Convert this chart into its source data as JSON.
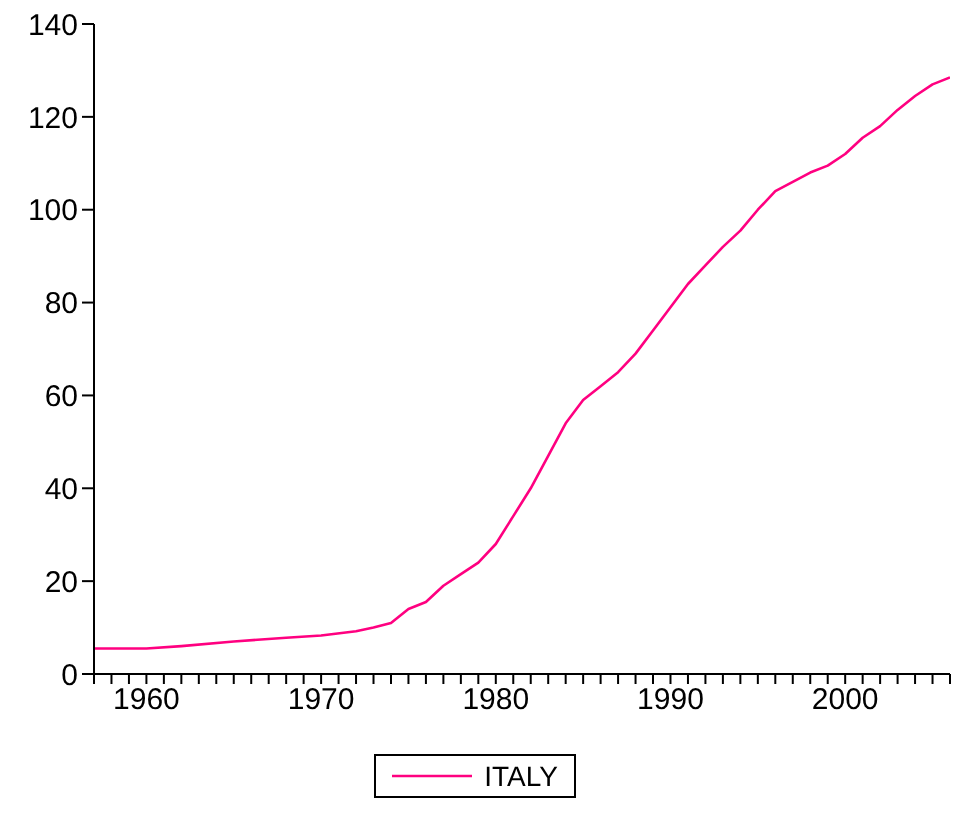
{
  "chart_data": {
    "type": "line",
    "x": [
      1957,
      1960,
      1962,
      1965,
      1968,
      1970,
      1972,
      1973,
      1974,
      1975,
      1976,
      1977,
      1978,
      1979,
      1980,
      1981,
      1982,
      1983,
      1984,
      1985,
      1986,
      1987,
      1988,
      1989,
      1990,
      1991,
      1992,
      1993,
      1994,
      1995,
      1996,
      1997,
      1998,
      1999,
      2000,
      2001,
      2002,
      2003,
      2004,
      2005,
      2006
    ],
    "series": [
      {
        "name": "ITALY",
        "color": "#ff0080",
        "values": [
          5.5,
          5.5,
          6,
          7,
          7.8,
          8.3,
          9.2,
          10,
          11,
          14,
          15.5,
          19,
          21.5,
          24,
          28,
          34,
          40,
          47,
          54,
          59,
          62,
          65,
          69,
          74,
          79,
          84,
          88,
          92,
          95.5,
          100,
          104,
          106,
          108,
          109.5,
          112,
          115.5,
          118,
          121.5,
          124.5,
          127,
          128.5
        ]
      }
    ],
    "xlim": [
      1957,
      2006
    ],
    "xticks": [
      {
        "value": 1957,
        "label": null
      },
      {
        "value": 1958,
        "label": null
      },
      {
        "value": 1959,
        "label": null
      },
      1960,
      {
        "value": 1961,
        "label": null
      },
      {
        "value": 1962,
        "label": null
      },
      {
        "value": 1963,
        "label": null
      },
      {
        "value": 1964,
        "label": null
      },
      {
        "value": 1965,
        "label": null
      },
      {
        "value": 1966,
        "label": null
      },
      {
        "value": 1967,
        "label": null
      },
      {
        "value": 1968,
        "label": null
      },
      {
        "value": 1969,
        "label": null
      },
      1970,
      {
        "value": 1971,
        "label": null
      },
      {
        "value": 1972,
        "label": null
      },
      {
        "value": 1973,
        "label": null
      },
      {
        "value": 1974,
        "label": null
      },
      {
        "value": 1975,
        "label": null
      },
      {
        "value": 1976,
        "label": null
      },
      {
        "value": 1977,
        "label": null
      },
      {
        "value": 1978,
        "label": null
      },
      {
        "value": 1979,
        "label": null
      },
      1980,
      {
        "value": 1981,
        "label": null
      },
      {
        "value": 1982,
        "label": null
      },
      {
        "value": 1983,
        "label": null
      },
      {
        "value": 1984,
        "label": null
      },
      {
        "value": 1985,
        "label": null
      },
      {
        "value": 1986,
        "label": null
      },
      {
        "value": 1987,
        "label": null
      },
      {
        "value": 1988,
        "label": null
      },
      {
        "value": 1989,
        "label": null
      },
      1990,
      {
        "value": 1991,
        "label": null
      },
      {
        "value": 1992,
        "label": null
      },
      {
        "value": 1993,
        "label": null
      },
      {
        "value": 1994,
        "label": null
      },
      {
        "value": 1995,
        "label": null
      },
      {
        "value": 1996,
        "label": null
      },
      {
        "value": 1997,
        "label": null
      },
      {
        "value": 1998,
        "label": null
      },
      {
        "value": 1999,
        "label": null
      },
      2000,
      {
        "value": 2001,
        "label": null
      },
      {
        "value": 2002,
        "label": null
      },
      {
        "value": 2003,
        "label": null
      },
      {
        "value": 2004,
        "label": null
      },
      {
        "value": 2005,
        "label": null
      },
      {
        "value": 2006,
        "label": null
      }
    ],
    "ylim": [
      0,
      140
    ],
    "yticks": [
      0,
      20,
      40,
      60,
      80,
      100,
      120,
      140
    ],
    "grid": false,
    "legend": "bottom",
    "marker": "none",
    "line_style": "solid"
  }
}
